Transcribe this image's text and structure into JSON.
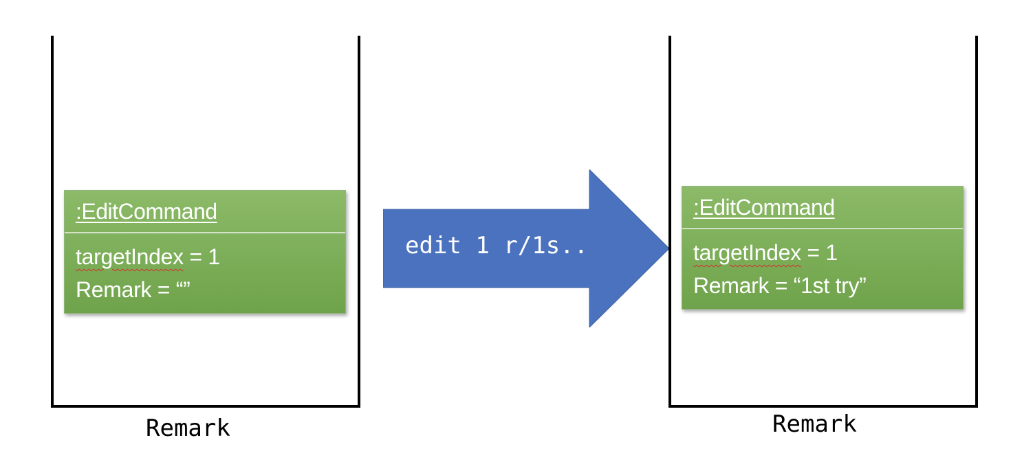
{
  "left_state": {
    "object_title": ":EditCommand",
    "attr_target_name": "targetIndex",
    "attr_target_value": " = 1",
    "attr_remark_line": "Remark = “”",
    "caption": "Remark"
  },
  "transition": {
    "command_text": "edit 1 r/1s..",
    "arrow_color": "#4a72be"
  },
  "right_state": {
    "object_title": ":EditCommand",
    "attr_target_name": "targetIndex",
    "attr_target_value": " = 1",
    "attr_remark_line": "Remark = “1st try”",
    "caption": "Remark"
  },
  "colors": {
    "object_fill": "#78ac53",
    "container_stroke": "#000000"
  }
}
